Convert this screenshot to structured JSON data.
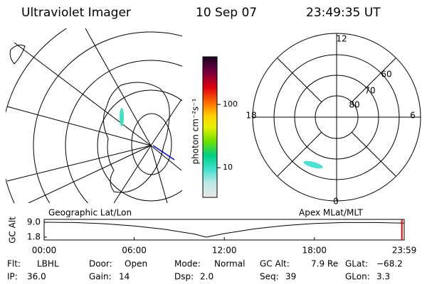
{
  "header": {
    "instrument": "Ultraviolet Imager",
    "date": "10 Sep 07",
    "time": "23:49:35 UT"
  },
  "colorbar": {
    "label": "photon cm⁻²s⁻¹",
    "range": [
      3.4,
      566
    ],
    "log": true,
    "ticks": [
      10,
      100
    ]
  },
  "polar_plot": {
    "mlt_labels": [
      "12",
      "18",
      "6",
      "0"
    ],
    "mlat_labels": [
      "60",
      "70",
      "80"
    ]
  },
  "orbit_plot": {
    "left_label": "Geographic Lat/Lon",
    "right_label": "Apex MLat/MLT",
    "ylabel": "GC Alt",
    "ylim": [
      0.4,
      10.4
    ],
    "yticks": [
      {
        "value": 9,
        "label": "9.0"
      },
      1.8
    ],
    "xlim": [
      0,
      23.983
    ],
    "xticks": [
      {
        "value": 0,
        "label": "00:00"
      },
      {
        "value": 6,
        "label": "06:00"
      },
      {
        "value": 12,
        "label": "12:00"
      },
      {
        "value": 18,
        "label": "18:00"
      },
      {
        "value": 23.983,
        "label": "23:59"
      }
    ],
    "hours": [
      0,
      2,
      4,
      6,
      8,
      10,
      10.8,
      12,
      14,
      16,
      18,
      20,
      22,
      23.983
    ],
    "altitude": [
      9.0,
      8.9,
      8.3,
      7.2,
      5.6,
      3.3,
      1.8,
      3.5,
      5.8,
      7.4,
      8.4,
      8.9,
      8.9,
      8.6
    ],
    "current_hour": 23.826,
    "marker_color": "#e00000"
  },
  "status": [
    [
      [
        "Flt:",
        "LBHL"
      ],
      [
        "Door:",
        "Open"
      ],
      [
        "Mode:",
        "Normal"
      ],
      [
        "GC Alt:",
        "7.9 Re"
      ],
      [
        "GLat:",
        "−68.2"
      ]
    ],
    [
      [
        "IP:",
        "36.0"
      ],
      [
        "Gain:",
        "14"
      ],
      [
        "Dsp:",
        "2.0"
      ],
      [
        "Seq:",
        "39"
      ],
      [
        "GLon:",
        "3.3"
      ]
    ]
  ]
}
